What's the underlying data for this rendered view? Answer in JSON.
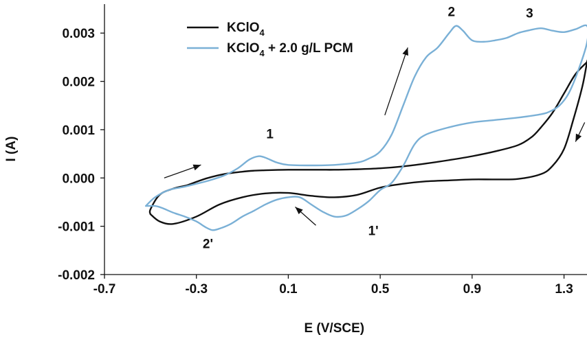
{
  "chart_data": {
    "type": "line",
    "title": "",
    "xlabel": "E (V/SCE)",
    "ylabel": "I (A)",
    "xlim": [
      -0.7,
      1.4
    ],
    "ylim": [
      -0.002,
      0.0036
    ],
    "x_ticks": [
      "-0.7",
      "-0.3",
      "0.1",
      "0.5",
      "0.9",
      "1.3"
    ],
    "y_ticks": [
      "-0.002",
      "-0.001",
      "0.000",
      "0.001",
      "0.002",
      "0.003"
    ],
    "grid": false,
    "legend_position": "top-left",
    "series": [
      {
        "name": "KClO4",
        "legend_main": "KClO",
        "legend_sub": "4",
        "legend_rest": "",
        "color": "#111111",
        "x": [
          -0.5,
          -0.5,
          -0.46,
          -0.4,
          -0.34,
          -0.3,
          -0.25,
          -0.18,
          -0.1,
          -0.05,
          0.0,
          0.1,
          0.2,
          0.25,
          0.3,
          0.4,
          0.5,
          0.6,
          0.7,
          0.8,
          0.9,
          1.0,
          1.1,
          1.16,
          1.2,
          1.25,
          1.3,
          1.35,
          1.4,
          1.4,
          1.38,
          1.34,
          1.3,
          1.25,
          1.2,
          1.1,
          1.0,
          0.9,
          0.8,
          0.7,
          0.6,
          0.5,
          0.4,
          0.3,
          0.2,
          0.1,
          0.0,
          -0.1,
          -0.2,
          -0.3,
          -0.4,
          -0.46,
          -0.5
        ],
        "y": [
          -0.00075,
          -0.00065,
          -0.00035,
          -0.00022,
          -0.00015,
          -8e-05,
          0.0,
          8e-05,
          0.00013,
          0.00015,
          0.00016,
          0.00017,
          0.00017,
          0.00017,
          0.00017,
          0.00018,
          0.0002,
          0.00024,
          0.0003,
          0.00037,
          0.00045,
          0.00055,
          0.00068,
          0.00085,
          0.00105,
          0.00135,
          0.00175,
          0.00215,
          0.0024,
          0.0024,
          0.0019,
          0.0012,
          0.0006,
          0.00025,
          8e-05,
          -2e-05,
          -3e-05,
          -3e-05,
          -5e-05,
          -7e-05,
          -0.00012,
          -0.0002,
          -0.00035,
          -0.0004,
          -0.00037,
          -0.00031,
          -0.00032,
          -0.0004,
          -0.00055,
          -0.0008,
          -0.00095,
          -0.0009,
          -0.00075
        ]
      },
      {
        "name": "KClO4 + 2.0 g/L PCM",
        "legend_main": "KClO",
        "legend_sub": "4",
        "legend_rest": " + 2.0 g/L PCM",
        "color": "#7ab0d6",
        "x": [
          -0.52,
          -0.48,
          -0.42,
          -0.35,
          -0.3,
          -0.25,
          -0.18,
          -0.12,
          -0.07,
          -0.03,
          0.0,
          0.05,
          0.1,
          0.2,
          0.3,
          0.4,
          0.45,
          0.5,
          0.55,
          0.6,
          0.65,
          0.7,
          0.75,
          0.8,
          0.83,
          0.86,
          0.9,
          0.95,
          1.0,
          1.05,
          1.1,
          1.15,
          1.2,
          1.25,
          1.3,
          1.35,
          1.4,
          1.4,
          1.36,
          1.32,
          1.28,
          1.24,
          1.2,
          1.1,
          1.0,
          0.9,
          0.8,
          0.7,
          0.65,
          0.6,
          0.55,
          0.5,
          0.45,
          0.4,
          0.35,
          0.3,
          0.25,
          0.2,
          0.15,
          0.1,
          0.05,
          0.0,
          -0.05,
          -0.1,
          -0.15,
          -0.2,
          -0.23,
          -0.26,
          -0.3,
          -0.35,
          -0.4,
          -0.45,
          -0.48,
          -0.52
        ],
        "y": [
          -0.00058,
          -0.0004,
          -0.00025,
          -0.00018,
          -0.00012,
          -6e-05,
          5e-05,
          0.0002,
          0.00038,
          0.00045,
          0.00042,
          0.00032,
          0.00027,
          0.00026,
          0.00027,
          0.00032,
          0.0004,
          0.00055,
          0.0009,
          0.0015,
          0.0021,
          0.0025,
          0.0027,
          0.003,
          0.00315,
          0.00305,
          0.00285,
          0.00282,
          0.00285,
          0.0029,
          0.003,
          0.00306,
          0.0031,
          0.00305,
          0.00302,
          0.00308,
          0.00315,
          0.0028,
          0.0022,
          0.00175,
          0.0015,
          0.00138,
          0.00132,
          0.00125,
          0.0012,
          0.00115,
          0.00105,
          0.0009,
          0.0007,
          0.00025,
          -0.0001,
          -0.00025,
          -0.00048,
          -0.00065,
          -0.00078,
          -0.0008,
          -0.0007,
          -0.00055,
          -0.0004,
          -0.0004,
          -0.00045,
          -0.00055,
          -0.00068,
          -0.0008,
          -0.00095,
          -0.00105,
          -0.00108,
          -0.00102,
          -0.0009,
          -0.0008,
          -0.00072,
          -0.00062,
          -0.00058,
          -0.00058
        ]
      }
    ],
    "annotations": [
      {
        "label": "1",
        "x": 0.02,
        "y": 0.00082
      },
      {
        "label": "2",
        "x": 0.81,
        "y": 0.00335
      },
      {
        "label": "3",
        "x": 1.15,
        "y": 0.00332
      },
      {
        "label": "1'",
        "x": 0.47,
        "y": -0.00118
      },
      {
        "label": "2'",
        "x": -0.25,
        "y": -0.00145
      }
    ],
    "arrows": [
      {
        "x1": -0.44,
        "y1": 0.0,
        "x2": -0.28,
        "y2": 0.00027
      },
      {
        "x1": 0.52,
        "y1": 0.0013,
        "x2": 0.62,
        "y2": 0.0027
      },
      {
        "x1": 0.22,
        "y1": -0.00098,
        "x2": 0.13,
        "y2": -0.0006
      },
      {
        "x1": 1.39,
        "y1": 0.00115,
        "x2": 1.35,
        "y2": 0.00075
      }
    ]
  }
}
